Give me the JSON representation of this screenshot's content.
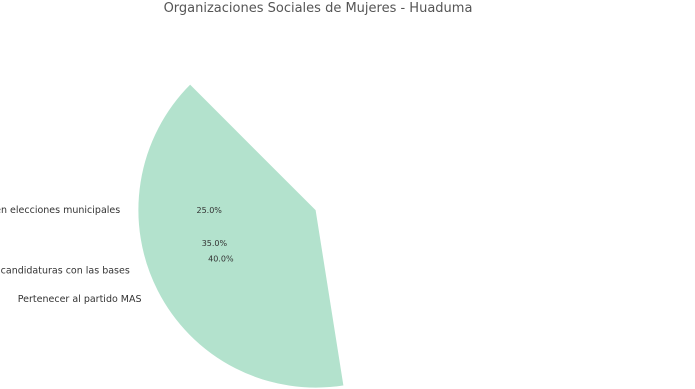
{
  "chart_data": {
    "type": "pie",
    "title": "Organizaciones Sociales de Mujeres - Huaduma",
    "categories": [
      "Asegurar victoria en elecciones municipales",
      "Unificar candidaturas con las bases",
      "Pertenecer al partido MAS"
    ],
    "values": [
      25.0,
      35.0,
      40.0
    ],
    "percent_labels": [
      "25.0%",
      "35.0%",
      "40.0%"
    ],
    "colors": [
      "#cbd5e8",
      "#fdcdac",
      "#b3e2cd"
    ],
    "start_angle_deg": 135,
    "direction": "counterclockwise"
  }
}
